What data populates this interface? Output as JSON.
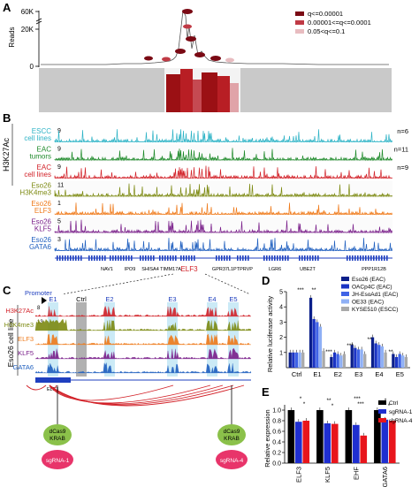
{
  "panels": {
    "A": {
      "label": "A",
      "ylabel": "Reads",
      "yticks": [
        "60K",
        "20K",
        "0"
      ],
      "legend": [
        {
          "label": "q<=0.00001",
          "color": "#7a0a14"
        },
        {
          "label": "0.00001<=q<=0.0001",
          "color": "#c03a45"
        },
        {
          "label": "0.05<q<=0.1",
          "color": "#e8bcc0"
        }
      ]
    },
    "B": {
      "label": "B",
      "group_label": "H3K27Ac",
      "tracks": [
        {
          "label1": "ESCC",
          "label2": "cell lines",
          "scale": "9",
          "n": "n=6",
          "color": "#2db3c6"
        },
        {
          "label1": "EAC",
          "label2": "tumors",
          "scale": "9",
          "n": "n=11",
          "color": "#1e8a2a"
        },
        {
          "label1": "EAC",
          "label2": "cell lines",
          "scale": "9",
          "n": "n=9",
          "color": "#d22128"
        },
        {
          "label1": "Eso26",
          "label2": "H3K4me3",
          "scale": "11",
          "n": "",
          "color": "#7d8a12"
        },
        {
          "label1": "Eso26",
          "label2": "ELF3",
          "scale": "1",
          "n": "",
          "color": "#ef7a1a"
        },
        {
          "label1": "Eso26",
          "label2": "KLF5",
          "scale": "5",
          "n": "",
          "color": "#7a1f8a"
        },
        {
          "label1": "Eso26",
          "label2": "GATA6",
          "scale": "3",
          "n": "",
          "color": "#1f5fbf"
        }
      ],
      "genes": [
        {
          "name": "NAV1",
          "color": "#000000"
        },
        {
          "name": "IPO9",
          "color": "#000000"
        },
        {
          "name": "SHISA4",
          "color": "#000000"
        },
        {
          "name": "TIMM17A",
          "color": "#000000"
        },
        {
          "name": "ELF3",
          "color": "#d22128"
        },
        {
          "name": "GPR37L1",
          "color": "#000000"
        },
        {
          "name": "PTPRVP",
          "color": "#000000"
        },
        {
          "name": "LGR6",
          "color": "#000000"
        },
        {
          "name": "UBE2T",
          "color": "#000000"
        },
        {
          "name": "PPP1R12B",
          "color": "#000000"
        }
      ]
    },
    "C": {
      "label": "C",
      "side_label": "Eso26 cell line",
      "promoter": "Promoter",
      "regions": [
        "E1",
        "Ctrl",
        "E2",
        "E3",
        "E4",
        "E5"
      ],
      "tracks": [
        {
          "label": "H3K27Ac",
          "scale": "8",
          "color": "#d22128"
        },
        {
          "label": "H3K4me3",
          "scale": "13",
          "color": "#7d8a12"
        },
        {
          "label": "ELF3",
          "scale": "",
          "color": "#ef7a1a"
        },
        {
          "label": "KLF5",
          "scale": "",
          "color": "#7a1f8a"
        },
        {
          "label": "GATA6",
          "scale": "",
          "color": "#1f5fbf"
        }
      ],
      "gene": "ELF3",
      "dcas9_label1": "dCas9",
      "dcas9_label2": "KRAB",
      "sgrna1": "sgRNA-1",
      "sgrna4": "sgRNA-4"
    },
    "D": {
      "label": "D"
    },
    "E": {
      "label": "E"
    }
  },
  "chart_data": [
    {
      "panel": "D",
      "type": "bar",
      "ylabel": "Relative luciferase activity",
      "categories": [
        "Ctrl",
        "E1",
        "E2",
        "E3",
        "E4",
        "E5"
      ],
      "yticks": [
        "1",
        "2",
        "3",
        "4",
        "5"
      ],
      "ylim": [
        0,
        5
      ],
      "series": [
        {
          "name": "Eso26 (EAC)",
          "color": "#0b1f8a",
          "values": [
            1.0,
            4.6,
            0.7,
            1.5,
            2.0,
            0.9
          ]
        },
        {
          "name": "OACp4C (EAC)",
          "color": "#1b34c4",
          "values": [
            1.0,
            3.2,
            1.0,
            1.3,
            1.6,
            0.7
          ]
        },
        {
          "name": "JH-EsoAd1 (EAC)",
          "color": "#3f63e6",
          "values": [
            1.0,
            3.0,
            0.9,
            1.2,
            1.5,
            0.9
          ]
        },
        {
          "name": "OE33 (EAC)",
          "color": "#8fb0f5",
          "values": [
            1.0,
            2.7,
            0.8,
            1.2,
            1.4,
            0.8
          ]
        },
        {
          "name": "KYSE510 (ESCC)",
          "color": "#a9a9a9",
          "values": [
            1.0,
            1.1,
            0.9,
            0.9,
            1.0,
            0.7
          ]
        }
      ],
      "annotations": [
        "***",
        "**",
        "***",
        "***",
        "**",
        "**"
      ]
    },
    {
      "panel": "E",
      "type": "bar",
      "ylabel": "Relative expression",
      "categories": [
        "ELF3",
        "KLF5",
        "EHF",
        "GATA6"
      ],
      "yticks": [
        "0.0",
        "0.2",
        "0.4",
        "0.6",
        "0.8",
        "1.0"
      ],
      "ylim": [
        0,
        1.1
      ],
      "series": [
        {
          "name": "Ctrl",
          "color": "#000000",
          "values": [
            1.0,
            1.0,
            1.0,
            1.0
          ]
        },
        {
          "name": "sgRNA-1",
          "color": "#1f2fd0",
          "values": [
            0.78,
            0.75,
            0.72,
            0.82
          ]
        },
        {
          "name": "sgRNA-4",
          "color": "#e8151c",
          "values": [
            0.8,
            0.74,
            0.52,
            0.8
          ]
        }
      ],
      "annotations": [
        "*",
        "*",
        "**",
        "*",
        "***",
        "***",
        "*",
        "*"
      ]
    }
  ]
}
